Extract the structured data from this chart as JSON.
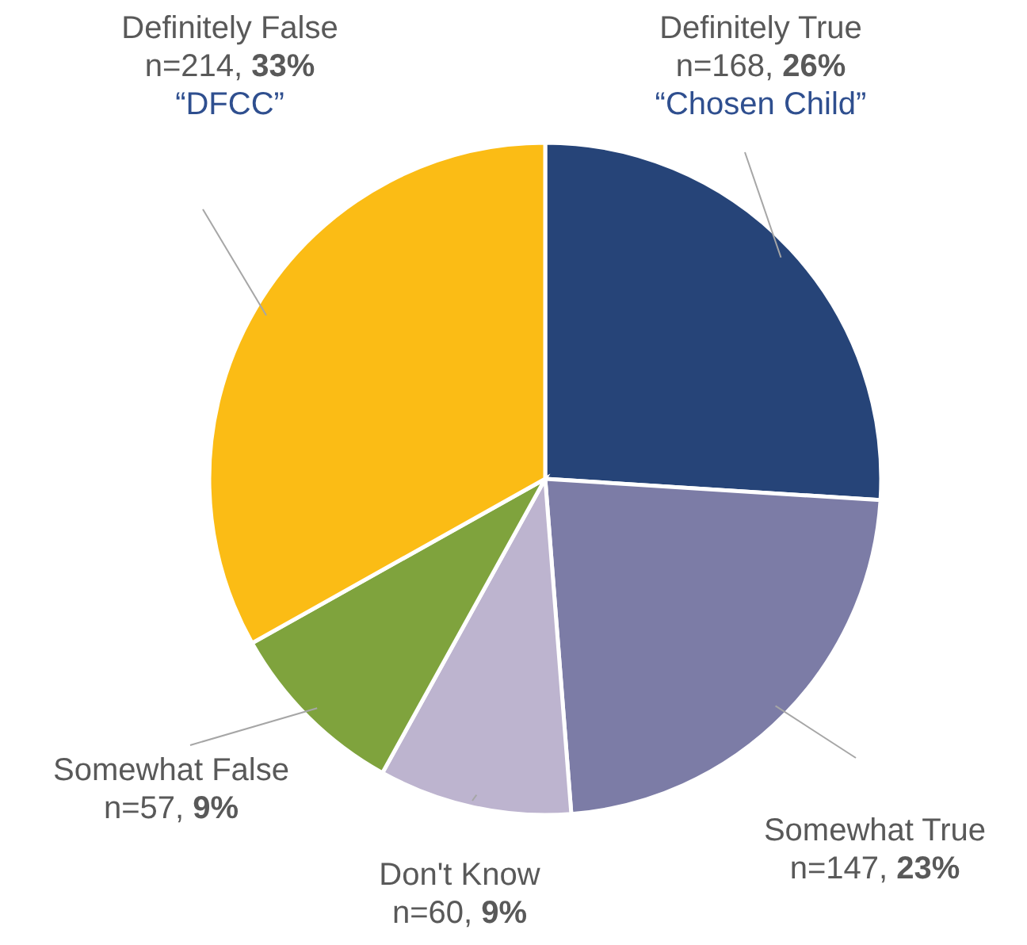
{
  "chart_data": {
    "type": "pie",
    "categories": [
      "Definitely True",
      "Somewhat True",
      "Don't Know",
      "Somewhat False",
      "Definitely False"
    ],
    "values": [
      168,
      147,
      60,
      57,
      214
    ],
    "colors": [
      "#264478",
      "#7c7ca6",
      "#bdb4cf",
      "#7fa33d",
      "#fbbc15"
    ],
    "value_labels": [
      "n=168, 26%",
      "n=147, 23%",
      "n=60, 9%",
      "n=57, 9%",
      "n=214, 33%"
    ],
    "annotations": [
      {
        "text": "“Chosen Child”",
        "x": "Definitely True"
      },
      {
        "text": "“DFCC”",
        "x": "Definitely False"
      }
    ]
  }
}
